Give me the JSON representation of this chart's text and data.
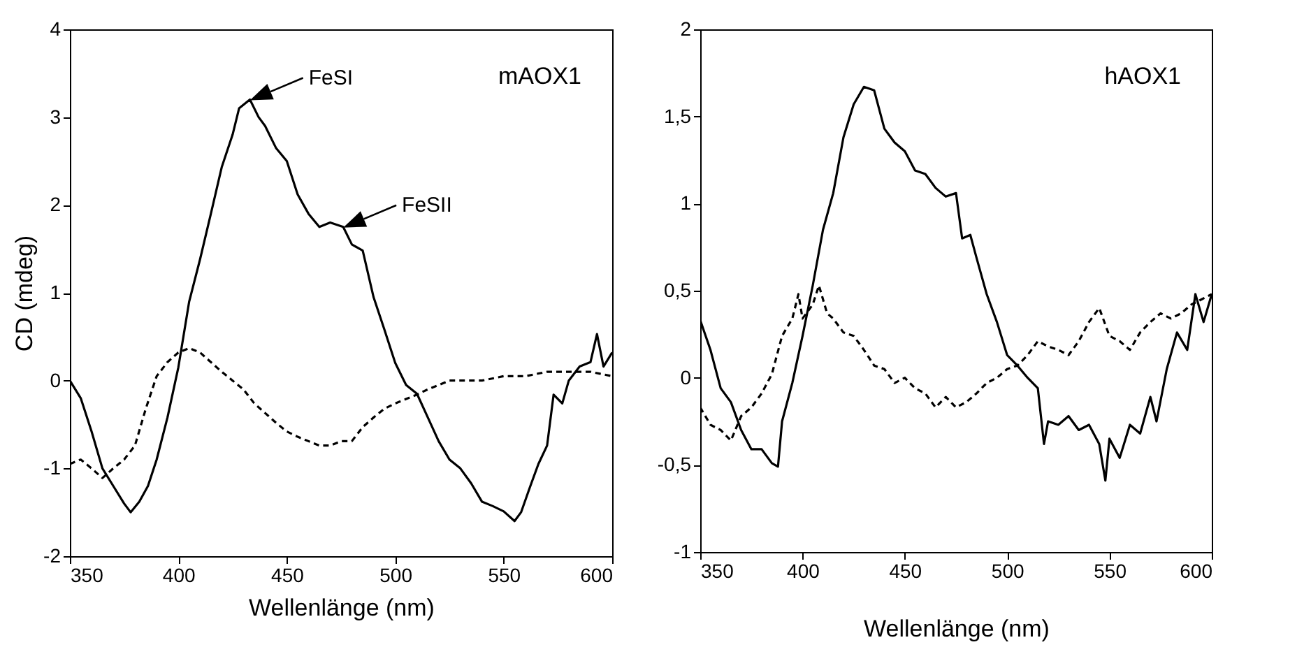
{
  "chart_data": [
    {
      "type": "line",
      "ylabel": "CD (mdeg)",
      "xlabel": "Wellenlänge (nm)",
      "xlim": [
        350,
        600
      ],
      "xticks": [
        350,
        400,
        450,
        500,
        550,
        600
      ],
      "ylim": [
        -2,
        4
      ],
      "yticks": [
        -2,
        -1,
        0,
        1,
        2,
        3,
        4
      ],
      "annotations": [
        "mAOX1",
        {
          "text": "FeSI",
          "x": 433,
          "y": 3.2
        },
        {
          "text": "FeSII",
          "x": 476,
          "y": 1.75
        }
      ],
      "x": [
        350,
        355,
        360,
        365,
        370,
        375,
        378,
        382,
        386,
        390,
        395,
        400,
        405,
        410,
        415,
        420,
        425,
        428,
        433,
        437,
        440,
        445,
        450,
        455,
        460,
        465,
        470,
        476,
        480,
        485,
        490,
        495,
        500,
        505,
        510,
        515,
        520,
        525,
        530,
        535,
        540,
        545,
        550,
        555,
        558,
        562,
        566,
        570,
        573,
        577,
        580,
        585,
        590,
        593,
        596,
        600
      ],
      "series": [
        {
          "color": "#000000",
          "line_style": "solid",
          "values": [
            0,
            -0.2,
            -0.58,
            -1.0,
            -1.2,
            -1.4,
            -1.5,
            -1.38,
            -1.2,
            -0.9,
            -0.42,
            0.15,
            0.9,
            1.38,
            1.9,
            2.43,
            2.8,
            3.1,
            3.2,
            3.0,
            2.9,
            2.65,
            2.5,
            2.12,
            1.9,
            1.75,
            1.8,
            1.75,
            1.55,
            1.48,
            0.95,
            0.58,
            0.2,
            -0.05,
            -0.15,
            -0.42,
            -0.69,
            -0.9,
            -1.0,
            -1.17,
            -1.38,
            -1.43,
            -1.49,
            -1.6,
            -1.5,
            -1.22,
            -0.95,
            -0.74,
            -0.16,
            -0.26,
            0,
            0.16,
            0.21,
            0.53,
            0.16,
            0.32
          ]
        },
        {
          "color": "#000000",
          "line_style": "dashed",
          "x": [
            350,
            355,
            360,
            365,
            370,
            375,
            380,
            385,
            390,
            395,
            400,
            405,
            410,
            415,
            420,
            425,
            430,
            435,
            440,
            445,
            450,
            455,
            460,
            465,
            470,
            475,
            480,
            485,
            490,
            495,
            500,
            505,
            510,
            515,
            520,
            525,
            530,
            540,
            550,
            560,
            570,
            580,
            590,
            600
          ],
          "values": [
            -0.95,
            -0.9,
            -1.0,
            -1.11,
            -1.0,
            -0.9,
            -0.74,
            -0.32,
            0.05,
            0.21,
            0.32,
            0.37,
            0.32,
            0.21,
            0.1,
            0,
            -0.1,
            -0.26,
            -0.37,
            -0.48,
            -0.58,
            -0.64,
            -0.69,
            -0.74,
            -0.74,
            -0.69,
            -0.69,
            -0.53,
            -0.42,
            -0.32,
            -0.26,
            -0.21,
            -0.16,
            -0.1,
            -0.05,
            0,
            0,
            0,
            0.05,
            0.05,
            0.1,
            0.1,
            0.1,
            0.05
          ]
        }
      ]
    },
    {
      "type": "line",
      "xlabel": "Wellenlänge (nm)",
      "xlim": [
        350,
        600
      ],
      "xticks": [
        350,
        400,
        450,
        500,
        550,
        600
      ],
      "ylim": [
        -1,
        2
      ],
      "yticks": [
        -1,
        {
          "value": -0.5,
          "label": "-0,5"
        },
        0,
        {
          "value": 0.5,
          "label": "0,5"
        },
        1,
        {
          "value": 1.5,
          "label": "1,5"
        },
        2
      ],
      "annotations": [
        "hAOX1"
      ],
      "series": [
        {
          "color": "#000000",
          "line_style": "solid",
          "x": [
            350,
            355,
            360,
            365,
            370,
            375,
            380,
            385,
            388,
            390,
            395,
            400,
            405,
            410,
            415,
            420,
            425,
            430,
            435,
            440,
            445,
            450,
            455,
            460,
            465,
            470,
            475,
            478,
            482,
            485,
            490,
            495,
            500,
            505,
            510,
            515,
            518,
            520,
            525,
            530,
            535,
            540,
            545,
            548,
            550,
            555,
            560,
            565,
            570,
            573,
            578,
            583,
            588,
            592,
            596,
            600
          ],
          "values": [
            0.33,
            0.16,
            -0.06,
            -0.14,
            -0.3,
            -0.41,
            -0.41,
            -0.49,
            -0.51,
            -0.25,
            -0.03,
            0.24,
            0.53,
            0.85,
            1.06,
            1.38,
            1.57,
            1.67,
            1.65,
            1.43,
            1.35,
            1.3,
            1.19,
            1.17,
            1.09,
            1.04,
            1.06,
            0.8,
            0.82,
            0.69,
            0.48,
            0.32,
            0.13,
            0.07,
            0,
            -0.06,
            -0.38,
            -0.25,
            -0.27,
            -0.22,
            -0.3,
            -0.27,
            -0.38,
            -0.59,
            -0.35,
            -0.46,
            -0.27,
            -0.32,
            -0.11,
            -0.25,
            0.05,
            0.26,
            0.16,
            0.48,
            0.32,
            0.48
          ]
        },
        {
          "color": "#000000",
          "line_style": "dashed",
          "x": [
            350,
            355,
            360,
            365,
            370,
            375,
            380,
            385,
            390,
            395,
            398,
            400,
            405,
            408,
            412,
            415,
            420,
            425,
            430,
            435,
            440,
            445,
            450,
            455,
            460,
            465,
            470,
            475,
            480,
            485,
            490,
            495,
            500,
            505,
            510,
            515,
            520,
            525,
            530,
            535,
            540,
            545,
            550,
            555,
            560,
            565,
            570,
            575,
            580,
            585,
            590,
            595,
            600
          ],
          "values": [
            -0.17,
            -0.27,
            -0.3,
            -0.36,
            -0.22,
            -0.17,
            -0.09,
            0.02,
            0.24,
            0.34,
            0.48,
            0.34,
            0.42,
            0.53,
            0.37,
            0.34,
            0.26,
            0.24,
            0.16,
            0.07,
            0.05,
            -0.03,
            0,
            -0.06,
            -0.09,
            -0.17,
            -0.11,
            -0.17,
            -0.14,
            -0.09,
            -0.03,
            0,
            0.05,
            0.07,
            0.13,
            0.21,
            0.18,
            0.16,
            0.13,
            0.21,
            0.32,
            0.4,
            0.24,
            0.21,
            0.16,
            0.26,
            0.32,
            0.37,
            0.34,
            0.37,
            0.42,
            0.45,
            0.48
          ]
        }
      ]
    }
  ]
}
